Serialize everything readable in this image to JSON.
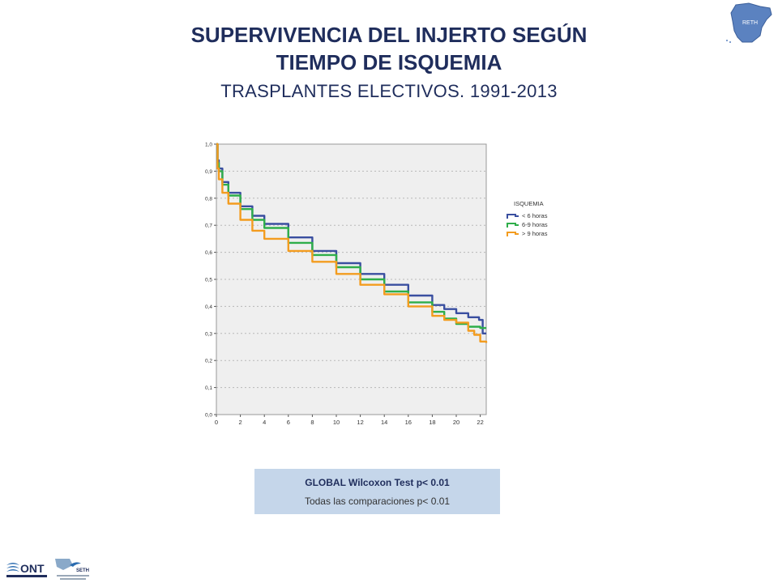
{
  "header": {
    "title_line1": "SUPERVIVENCIA DEL INJERTO SEGÚN",
    "title_line2": "TIEMPO DE ISQUEMIA",
    "subtitle": "TRASPLANTES ELECTIVOS. 1991-2013"
  },
  "stats_box": {
    "line1": "GLOBAL Wilcoxon Test  p< 0.01",
    "line2": "Todas las comparaciones   p< 0.01"
  },
  "logos": {
    "ont_label": "ONT",
    "seth_label": "SETH",
    "map_label": "RETH"
  },
  "colors": {
    "lt6": "#3a4fa0",
    "6to9": "#2fae4a",
    "gt9": "#f39c1f",
    "plot_bg": "#efefef"
  },
  "chart_data": {
    "type": "line",
    "title": "",
    "xlabel": "",
    "ylabel": "",
    "xlim": [
      0,
      22.5
    ],
    "ylim": [
      0,
      1
    ],
    "x_ticks": [
      "0",
      "2",
      "4",
      "6",
      "8",
      "10",
      "12",
      "14",
      "16",
      "18",
      "20",
      "22"
    ],
    "y_ticks": [
      "0,0",
      "0,1",
      "0,2",
      "0,3",
      "0,4",
      "0,5",
      "0,6",
      "0,7",
      "0,8",
      "0,9",
      "1,0"
    ],
    "grid": "horizontal dotted",
    "legend": {
      "title": "ISQUEMIA",
      "position": "right"
    },
    "series": [
      {
        "name": "< 6 horas",
        "x": [
          0,
          0.1,
          0.2,
          0.5,
          1,
          2,
          3,
          4,
          6,
          8,
          10,
          12,
          14,
          16,
          18,
          19,
          20,
          21,
          21.9,
          22.2,
          22.5
        ],
        "y": [
          1.0,
          0.94,
          0.91,
          0.86,
          0.82,
          0.77,
          0.735,
          0.705,
          0.655,
          0.605,
          0.56,
          0.52,
          0.48,
          0.44,
          0.405,
          0.39,
          0.375,
          0.36,
          0.35,
          0.3,
          0.3
        ]
      },
      {
        "name": "6-9 horas",
        "x": [
          0,
          0.1,
          0.2,
          0.5,
          1,
          2,
          3,
          4,
          6,
          8,
          10,
          12,
          14,
          16,
          18,
          19,
          20,
          21,
          22,
          22.5
        ],
        "y": [
          1.0,
          0.93,
          0.9,
          0.85,
          0.81,
          0.76,
          0.72,
          0.69,
          0.635,
          0.59,
          0.545,
          0.5,
          0.455,
          0.415,
          0.38,
          0.355,
          0.335,
          0.325,
          0.32,
          0.32
        ]
      },
      {
        "name": "> 9 horas",
        "x": [
          0,
          0.1,
          0.2,
          0.5,
          1,
          2,
          3,
          4,
          6,
          8,
          10,
          12,
          14,
          16,
          18,
          19,
          20,
          21,
          21.5,
          22,
          22.5
        ],
        "y": [
          1.0,
          0.91,
          0.87,
          0.82,
          0.78,
          0.72,
          0.68,
          0.65,
          0.605,
          0.565,
          0.52,
          0.48,
          0.445,
          0.4,
          0.365,
          0.35,
          0.34,
          0.31,
          0.295,
          0.27,
          0.265
        ]
      }
    ]
  }
}
